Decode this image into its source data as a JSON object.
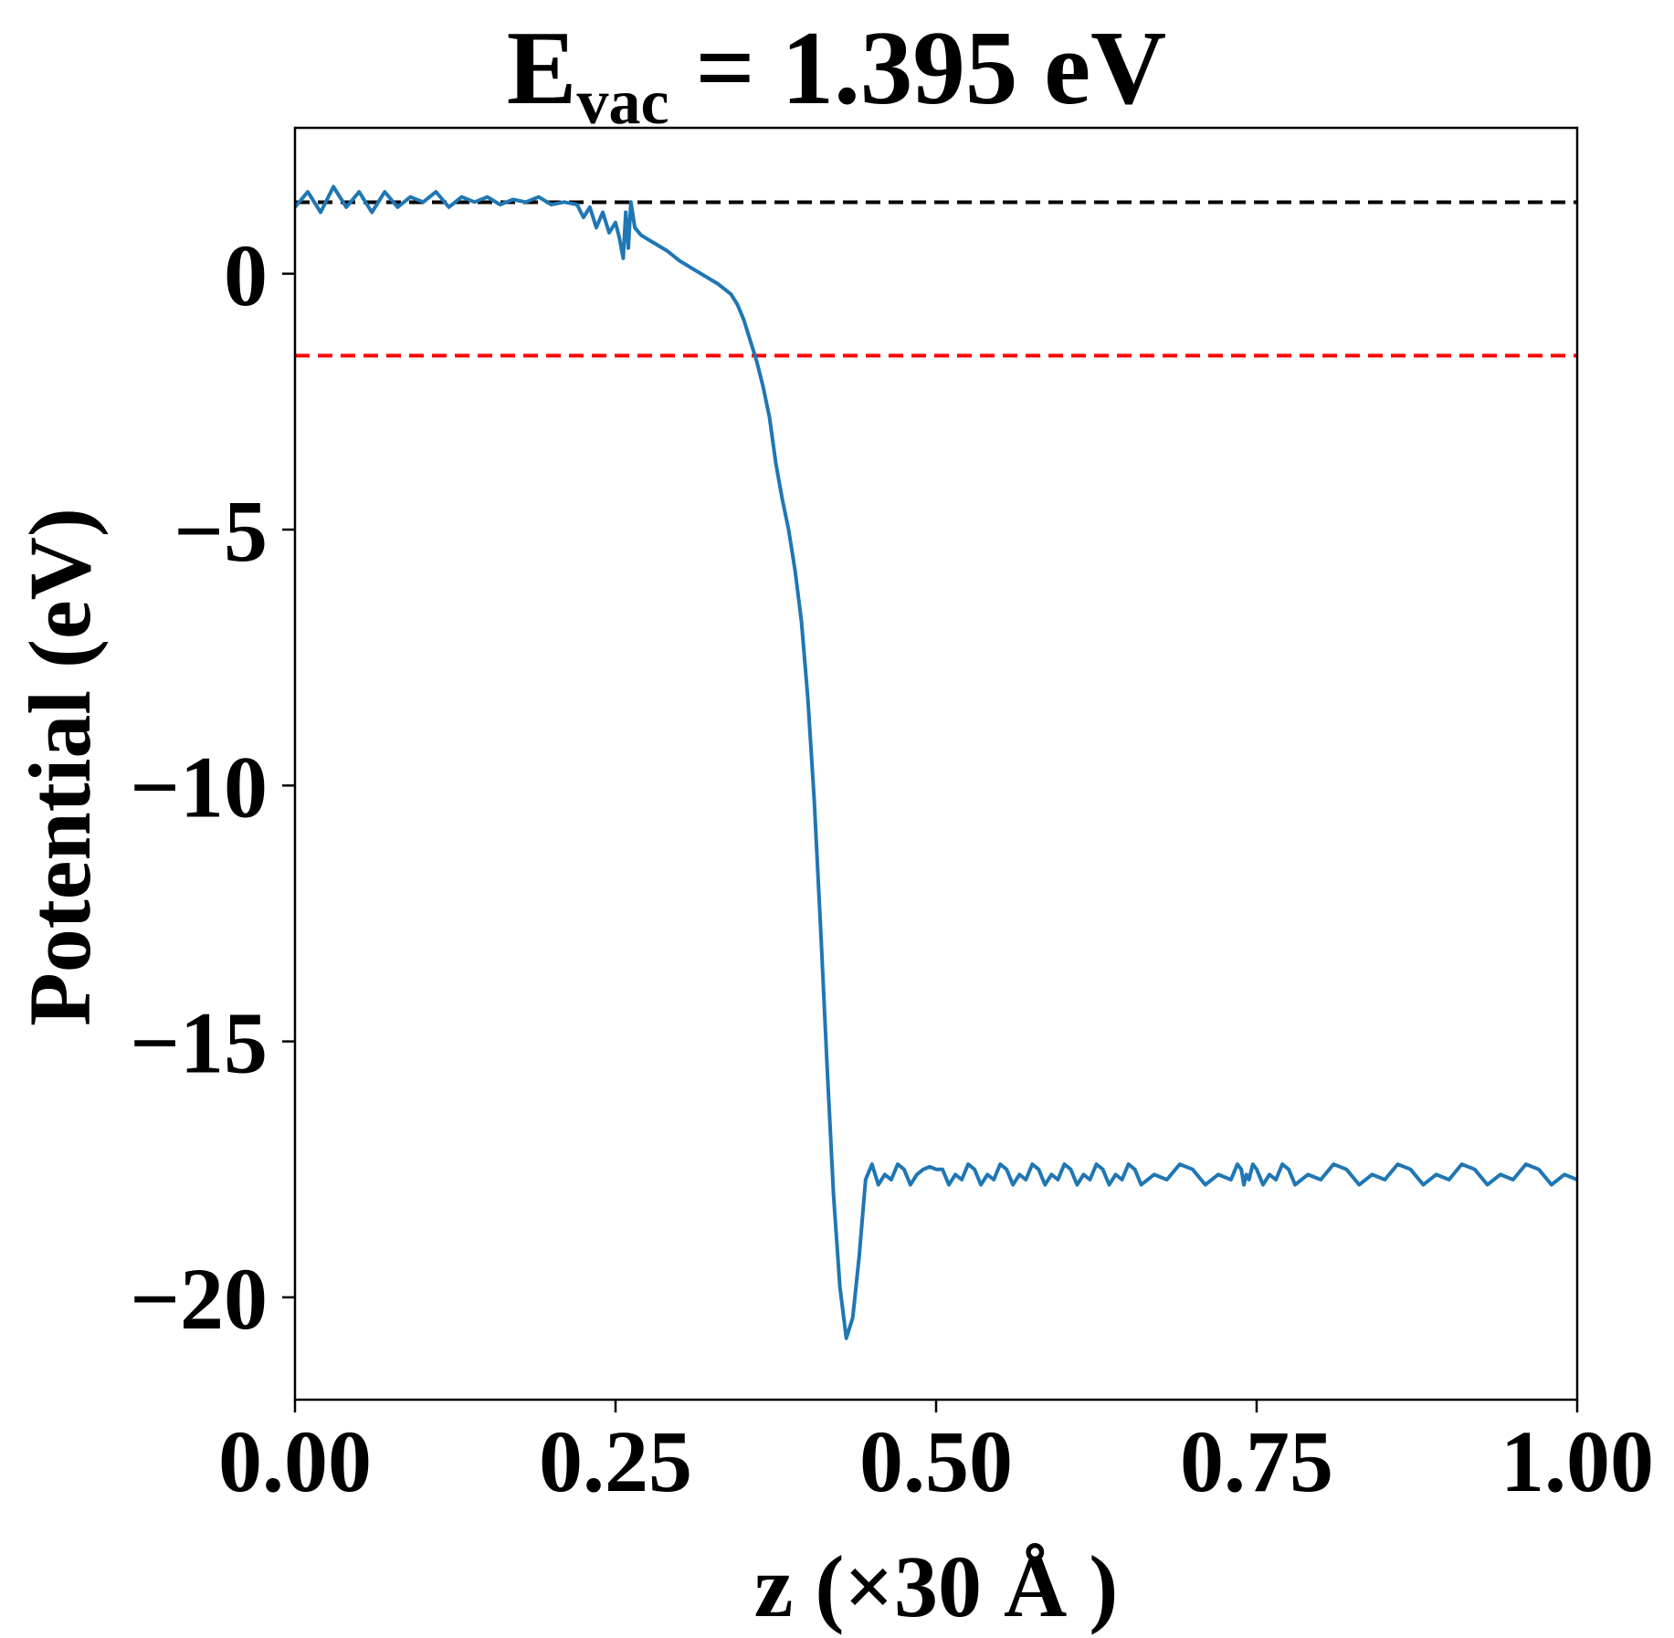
{
  "chart_data": {
    "type": "line",
    "title": {
      "main": "E",
      "subscript": "vac",
      "rest": " = 1.395 eV"
    },
    "xlabel": "z (×30 Å )",
    "ylabel": "Potential (eV)",
    "xlim": [
      0.0,
      1.0
    ],
    "ylim": [
      -22.0,
      2.85
    ],
    "x_ticks": [
      0.0,
      0.25,
      0.5,
      0.75,
      1.0
    ],
    "x_tick_labels": [
      "0.00",
      "0.25",
      "0.50",
      "0.75",
      "1.00"
    ],
    "y_ticks": [
      0,
      -5,
      -10,
      -15,
      -20
    ],
    "y_tick_labels": [
      "0",
      "−5",
      "−10",
      "−15",
      "−20"
    ],
    "grid": false,
    "legend": "none",
    "reference_lines": [
      {
        "y": 1.395,
        "color": "#000000",
        "style": "dashed"
      },
      {
        "y": -1.6,
        "color": "#ff0000",
        "style": "dashed"
      }
    ],
    "series": [
      {
        "color": "#1f77b4",
        "x": [
          0.0,
          0.01,
          0.02,
          0.03,
          0.04,
          0.05,
          0.06,
          0.07,
          0.08,
          0.09,
          0.1,
          0.11,
          0.12,
          0.13,
          0.14,
          0.15,
          0.16,
          0.17,
          0.18,
          0.19,
          0.2,
          0.21,
          0.22,
          0.225,
          0.23,
          0.235,
          0.24,
          0.245,
          0.25,
          0.253,
          0.256,
          0.258,
          0.26,
          0.262,
          0.265,
          0.27,
          0.28,
          0.29,
          0.3,
          0.31,
          0.32,
          0.33,
          0.34,
          0.345,
          0.35,
          0.355,
          0.36,
          0.365,
          0.37,
          0.375,
          0.38,
          0.385,
          0.39,
          0.395,
          0.4,
          0.405,
          0.41,
          0.415,
          0.42,
          0.425,
          0.43,
          0.435,
          0.44,
          0.445,
          0.45,
          0.455,
          0.46,
          0.465,
          0.47,
          0.475,
          0.48,
          0.485,
          0.49,
          0.495,
          0.5,
          0.505,
          0.51,
          0.515,
          0.52,
          0.525,
          0.53,
          0.535,
          0.54,
          0.545,
          0.55,
          0.555,
          0.56,
          0.565,
          0.57,
          0.575,
          0.58,
          0.585,
          0.59,
          0.595,
          0.6,
          0.605,
          0.61,
          0.615,
          0.62,
          0.625,
          0.63,
          0.635,
          0.64,
          0.645,
          0.65,
          0.655,
          0.66,
          0.67,
          0.68,
          0.69,
          0.7,
          0.71,
          0.72,
          0.73,
          0.735,
          0.738,
          0.74,
          0.742,
          0.744,
          0.747,
          0.75,
          0.755,
          0.76,
          0.765,
          0.77,
          0.775,
          0.78,
          0.79,
          0.8,
          0.81,
          0.82,
          0.83,
          0.84,
          0.85,
          0.86,
          0.87,
          0.88,
          0.89,
          0.9,
          0.91,
          0.92,
          0.93,
          0.94,
          0.95,
          0.96,
          0.97,
          0.98,
          0.99,
          1.0
        ],
        "y": [
          1.3,
          1.6,
          1.2,
          1.7,
          1.3,
          1.6,
          1.2,
          1.6,
          1.3,
          1.5,
          1.4,
          1.6,
          1.3,
          1.5,
          1.4,
          1.5,
          1.35,
          1.45,
          1.4,
          1.5,
          1.35,
          1.4,
          1.35,
          1.1,
          1.3,
          0.9,
          1.2,
          0.8,
          1.0,
          0.7,
          0.3,
          1.2,
          0.5,
          1.4,
          0.9,
          0.75,
          0.6,
          0.45,
          0.25,
          0.1,
          -0.05,
          -0.2,
          -0.4,
          -0.6,
          -0.9,
          -1.3,
          -1.7,
          -2.2,
          -2.8,
          -3.7,
          -4.4,
          -5.0,
          -5.8,
          -6.8,
          -8.3,
          -10.3,
          -12.8,
          -15.5,
          -18.0,
          -19.8,
          -20.8,
          -20.4,
          -19.2,
          -17.7,
          -17.4,
          -17.8,
          -17.6,
          -17.7,
          -17.4,
          -17.5,
          -17.8,
          -17.6,
          -17.5,
          -17.45,
          -17.5,
          -17.5,
          -17.8,
          -17.6,
          -17.7,
          -17.4,
          -17.5,
          -17.8,
          -17.6,
          -17.7,
          -17.4,
          -17.5,
          -17.8,
          -17.6,
          -17.7,
          -17.4,
          -17.5,
          -17.8,
          -17.6,
          -17.7,
          -17.4,
          -17.5,
          -17.8,
          -17.6,
          -17.7,
          -17.4,
          -17.5,
          -17.8,
          -17.6,
          -17.7,
          -17.4,
          -17.5,
          -17.8,
          -17.6,
          -17.7,
          -17.4,
          -17.5,
          -17.8,
          -17.6,
          -17.7,
          -17.4,
          -17.5,
          -17.8,
          -17.6,
          -17.7,
          -17.4,
          -17.5,
          -17.8,
          -17.6,
          -17.7,
          -17.4,
          -17.5,
          -17.8,
          -17.6,
          -17.7,
          -17.4,
          -17.5,
          -17.8,
          -17.6,
          -17.7,
          -17.4,
          -17.5,
          -17.8,
          -17.6,
          -17.7,
          -17.4,
          -17.5,
          -17.8,
          -17.6,
          -17.7,
          -17.4,
          -17.5,
          -17.8,
          -17.6,
          -17.7
        ]
      }
    ]
  }
}
